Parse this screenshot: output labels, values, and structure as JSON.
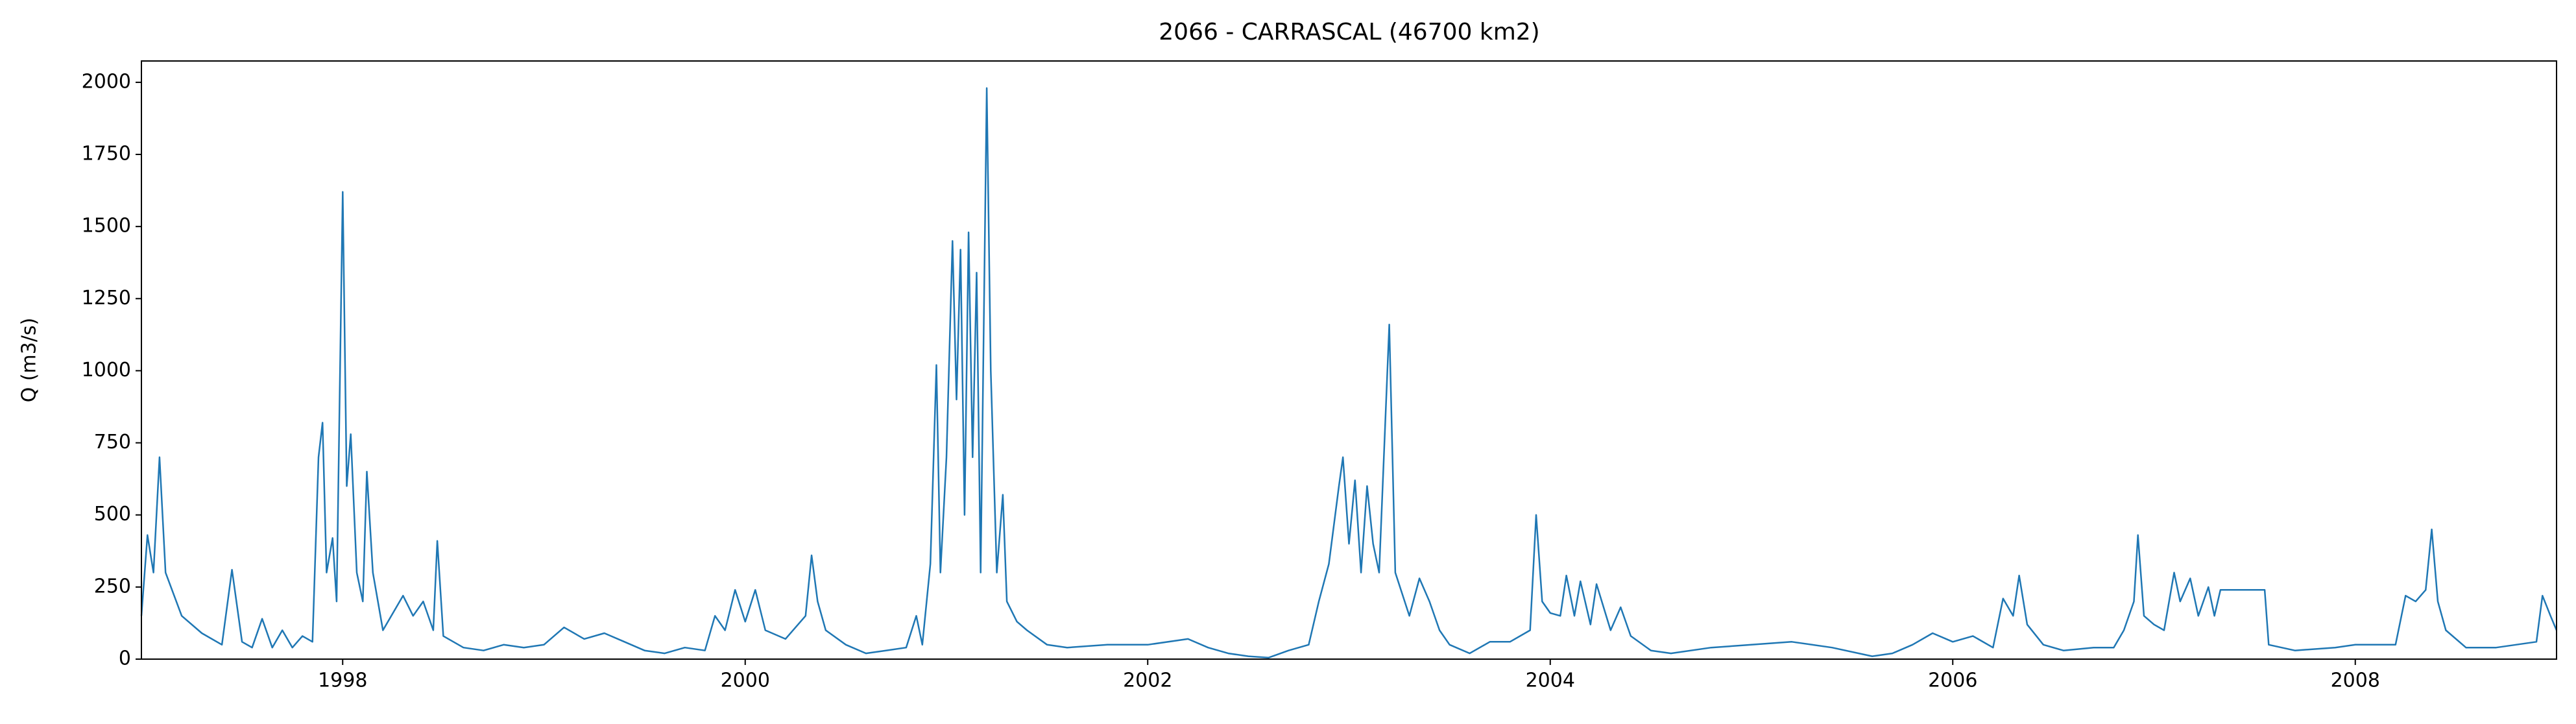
{
  "chart_data": {
    "type": "line",
    "title": "2066 - CARRASCAL (46700 km2)",
    "y_label": "Q (m3/s)",
    "x": [
      1997.0,
      1997.03,
      1997.06,
      1997.09,
      1997.12,
      1997.2,
      1997.3,
      1997.4,
      1997.45,
      1997.5,
      1997.55,
      1997.6,
      1997.65,
      1997.7,
      1997.75,
      1997.8,
      1997.85,
      1997.88,
      1997.9,
      1997.92,
      1997.95,
      1997.97,
      1998.0,
      1998.02,
      1998.04,
      1998.07,
      1998.1,
      1998.12,
      1998.15,
      1998.2,
      1998.3,
      1998.35,
      1998.4,
      1998.45,
      1998.47,
      1998.5,
      1998.6,
      1998.7,
      1998.8,
      1998.9,
      1999.0,
      1999.1,
      1999.2,
      1999.3,
      1999.4,
      1999.5,
      1999.6,
      1999.7,
      1999.8,
      1999.85,
      1999.9,
      1999.95,
      2000.0,
      2000.05,
      2000.1,
      2000.2,
      2000.3,
      2000.33,
      2000.36,
      2000.4,
      2000.5,
      2000.6,
      2000.7,
      2000.8,
      2000.85,
      2000.88,
      2000.92,
      2000.95,
      2000.97,
      2001.0,
      2001.03,
      2001.05,
      2001.07,
      2001.09,
      2001.11,
      2001.13,
      2001.15,
      2001.17,
      2001.2,
      2001.22,
      2001.25,
      2001.28,
      2001.3,
      2001.35,
      2001.4,
      2001.5,
      2001.6,
      2001.8,
      2002.0,
      2002.2,
      2002.3,
      2002.4,
      2002.5,
      2002.6,
      2002.7,
      2002.8,
      2002.85,
      2002.9,
      2002.95,
      2002.97,
      2003.0,
      2003.03,
      2003.06,
      2003.09,
      2003.12,
      2003.15,
      2003.2,
      2003.23,
      2003.3,
      2003.35,
      2003.4,
      2003.45,
      2003.5,
      2003.6,
      2003.7,
      2003.8,
      2003.9,
      2003.93,
      2003.96,
      2004.0,
      2004.05,
      2004.08,
      2004.12,
      2004.15,
      2004.2,
      2004.23,
      2004.3,
      2004.35,
      2004.4,
      2004.5,
      2004.6,
      2004.8,
      2005.0,
      2005.2,
      2005.4,
      2005.6,
      2005.7,
      2005.8,
      2005.9,
      2006.0,
      2006.1,
      2006.2,
      2006.25,
      2006.3,
      2006.33,
      2006.37,
      2006.45,
      2006.55,
      2006.7,
      2006.8,
      2006.85,
      2006.9,
      2006.92,
      2006.95,
      2007.0,
      2007.05,
      2007.1,
      2007.13,
      2007.18,
      2007.22,
      2007.27,
      2007.3,
      2007.33,
      2007.55,
      2007.57,
      2007.7,
      2007.9,
      2008.0,
      2008.2,
      2008.25,
      2008.3,
      2008.35,
      2008.38,
      2008.41,
      2008.45,
      2008.55,
      2008.7,
      2008.9,
      2008.93,
      2008.97,
      2009.0
    ],
    "series": [
      {
        "color": "#1f77b4",
        "values": [
          150,
          430,
          300,
          700,
          300,
          150,
          90,
          50,
          310,
          60,
          40,
          140,
          40,
          100,
          40,
          80,
          60,
          700,
          820,
          300,
          420,
          200,
          1620,
          600,
          780,
          300,
          200,
          650,
          300,
          100,
          220,
          150,
          200,
          100,
          410,
          80,
          40,
          30,
          50,
          40,
          50,
          110,
          70,
          90,
          60,
          30,
          20,
          40,
          30,
          150,
          100,
          240,
          130,
          240,
          100,
          70,
          150,
          360,
          200,
          100,
          50,
          20,
          30,
          40,
          150,
          50,
          330,
          1020,
          300,
          700,
          1450,
          900,
          1420,
          500,
          1480,
          700,
          1340,
          300,
          1980,
          1000,
          300,
          570,
          200,
          130,
          100,
          50,
          40,
          50,
          50,
          70,
          40,
          20,
          10,
          5,
          30,
          50,
          200,
          330,
          600,
          700,
          400,
          620,
          300,
          600,
          400,
          300,
          1160,
          300,
          150,
          280,
          200,
          100,
          50,
          20,
          60,
          60,
          100,
          500,
          200,
          160,
          150,
          290,
          150,
          270,
          120,
          260,
          100,
          180,
          80,
          30,
          20,
          40,
          50,
          60,
          40,
          10,
          20,
          50,
          90,
          60,
          80,
          40,
          210,
          150,
          290,
          120,
          50,
          30,
          40,
          40,
          100,
          200,
          430,
          150,
          120,
          100,
          300,
          200,
          280,
          150,
          250,
          150,
          240,
          240,
          50,
          30,
          40,
          50,
          50,
          220,
          200,
          240,
          450,
          200,
          100,
          40,
          40,
          60,
          220,
          150,
          100
        ]
      }
    ],
    "xlim": [
      1997.0,
      2009.0
    ],
    "xticks": [
      1998,
      2000,
      2002,
      2004,
      2006,
      2008
    ],
    "ylim": [
      0,
      2074
    ],
    "yticks": [
      0,
      250,
      500,
      750,
      1000,
      1250,
      1500,
      1750,
      2000
    ]
  }
}
